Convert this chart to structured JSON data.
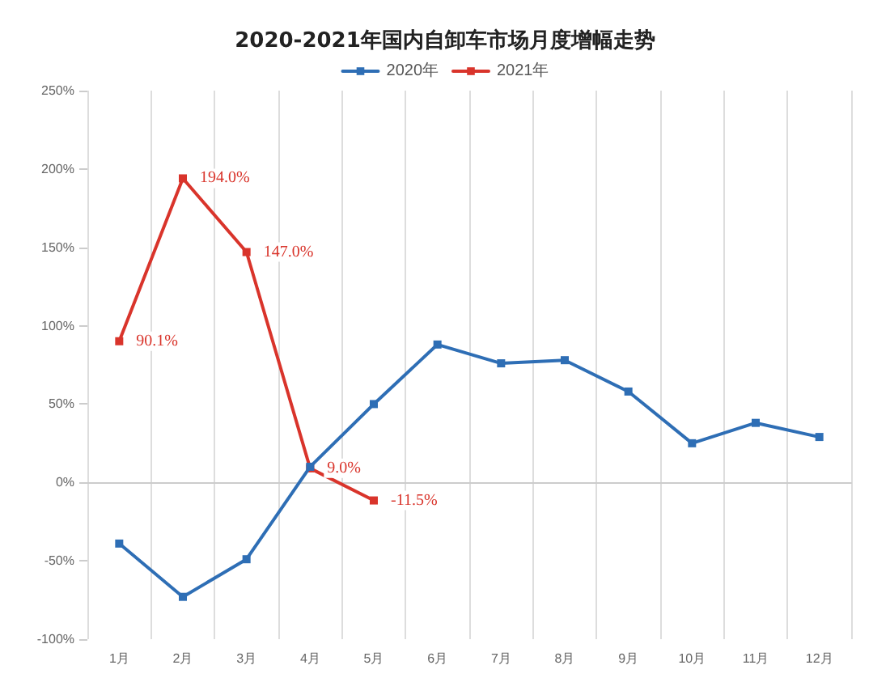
{
  "chart_data": {
    "type": "line",
    "title": "2020-2021年国内自卸车市场月度增幅走势",
    "categories": [
      "1月",
      "2月",
      "3月",
      "4月",
      "5月",
      "6月",
      "7月",
      "8月",
      "9月",
      "10月",
      "11月",
      "12月"
    ],
    "series": [
      {
        "name": "2020年",
        "color": "#2e6eb5",
        "values": [
          -39,
          -73,
          -49,
          10,
          50,
          88,
          76,
          78,
          58,
          25,
          38,
          29
        ]
      },
      {
        "name": "2021年",
        "color": "#d9342b",
        "values": [
          90.1,
          194.0,
          147.0,
          9.0,
          -11.5,
          null,
          null,
          null,
          null,
          null,
          null,
          null
        ],
        "value_labels": [
          "90.1%",
          "194.0%",
          "147.0%",
          "9.0%",
          "-11.5%",
          null,
          null,
          null,
          null,
          null,
          null,
          null
        ]
      }
    ],
    "ylim": [
      -100,
      250
    ],
    "yticks": [
      {
        "value": -100,
        "label": "-100%"
      },
      {
        "value": -50,
        "label": "-50%"
      },
      {
        "value": 0,
        "label": "0%"
      },
      {
        "value": 50,
        "label": "50%"
      },
      {
        "value": 100,
        "label": "100%"
      },
      {
        "value": 150,
        "label": "150%"
      },
      {
        "value": 200,
        "label": "200%"
      },
      {
        "value": 250,
        "label": "250%"
      }
    ],
    "grid": "x",
    "legend": "top",
    "marker": "square",
    "line_style": "solid"
  }
}
